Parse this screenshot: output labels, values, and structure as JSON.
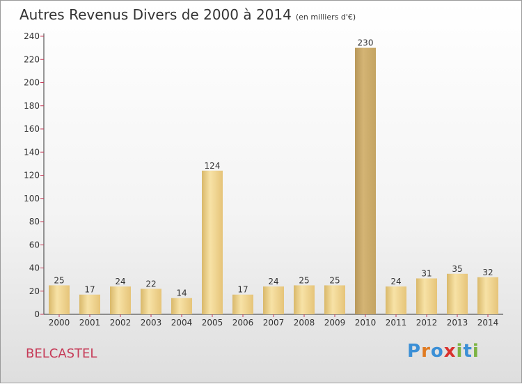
{
  "title": "Autres Revenus Divers de 2000 à 2014",
  "subtitle": "(en milliers d'€)",
  "place": "BELCASTEL",
  "logo": {
    "text": "Proxiti",
    "letters": [
      {
        "ch": "P",
        "color": "#3b8fd6"
      },
      {
        "ch": "r",
        "color": "#e07b21"
      },
      {
        "ch": "o",
        "color": "#3b8fd6"
      },
      {
        "ch": "x",
        "color": "#d9322e"
      },
      {
        "ch": "i",
        "color": "#7cb342"
      },
      {
        "ch": "t",
        "color": "#3b8fd6"
      },
      {
        "ch": "i",
        "color": "#7cb342"
      }
    ]
  },
  "chart_data": {
    "type": "bar",
    "categories": [
      "2000",
      "2001",
      "2002",
      "2003",
      "2004",
      "2005",
      "2006",
      "2007",
      "2008",
      "2009",
      "2010",
      "2011",
      "2012",
      "2013",
      "2014"
    ],
    "values": [
      25,
      17,
      24,
      22,
      14,
      124,
      17,
      24,
      25,
      25,
      230,
      24,
      31,
      35,
      32
    ],
    "ylim": [
      0,
      240
    ],
    "yticks": [
      0,
      20,
      40,
      60,
      80,
      100,
      120,
      140,
      160,
      180,
      200,
      220,
      240
    ],
    "grid": false,
    "legend": "none",
    "colors": {
      "bar_light": "#f7e0a0",
      "bar_mid": "#e8c77a",
      "bar_dark": "#c9a55c",
      "axis": "#333333",
      "tick_marks": "#c63a57"
    }
  }
}
